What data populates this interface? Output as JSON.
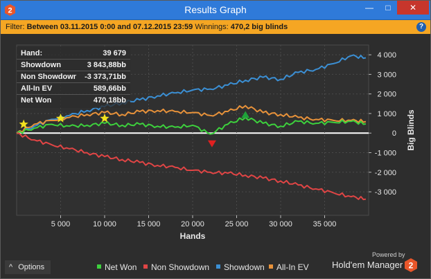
{
  "window": {
    "title": "Results Graph",
    "logo_text": "2",
    "minimize": "—",
    "maximize": "□",
    "close": "✕"
  },
  "filter": {
    "prefix": "Filter:",
    "range": "Between 03.11.2015 0:00 and 07.12.2015 23:59",
    "winnings_label": "Winnings:",
    "winnings_value": "470,2 big blinds",
    "help": "?"
  },
  "stats": [
    {
      "label": "Hand:",
      "value": "39 679"
    },
    {
      "label": "Showdown",
      "value": "3 843,88bb"
    },
    {
      "label": "Non Showdown",
      "value": "-3 373,71bb"
    },
    {
      "label": "All-In EV",
      "value": "589,66bb"
    },
    {
      "label": "Net Won",
      "value": "470,18bb"
    }
  ],
  "chart_data": {
    "type": "line",
    "xlabel": "Hands",
    "ylabel": "Big Blinds",
    "xlim": [
      0,
      40000
    ],
    "ylim": [
      -4200,
      4500
    ],
    "x_ticks": [
      5000,
      10000,
      15000,
      20000,
      25000,
      30000,
      35000
    ],
    "x_tick_labels": [
      "5 000",
      "10 000",
      "15 000",
      "20 000",
      "25 000",
      "30 000",
      "35 000"
    ],
    "y_ticks": [
      4000,
      3000,
      2000,
      1000,
      0,
      -1000,
      -2000,
      -3000
    ],
    "y_tick_labels": [
      "4 000",
      "3 000",
      "2 000",
      "1 000",
      "0",
      "-1 000",
      "-2 000",
      "-3 000"
    ],
    "grid": true,
    "background": "#303030",
    "series": [
      {
        "name": "Showdown",
        "color": "#3b8fd4",
        "x": [
          0,
          2000,
          4000,
          6000,
          8000,
          10000,
          12000,
          14000,
          16000,
          18000,
          20000,
          22000,
          24000,
          26000,
          28000,
          30000,
          32000,
          34000,
          36000,
          38000,
          39679
        ],
        "y": [
          0,
          350,
          700,
          900,
          1150,
          1350,
          1550,
          1700,
          1900,
          2050,
          2200,
          2250,
          2450,
          2700,
          2850,
          2750,
          3100,
          3250,
          3550,
          3950,
          3844
        ]
      },
      {
        "name": "All-In EV",
        "color": "#e8923a",
        "x": [
          0,
          2000,
          4000,
          6000,
          8000,
          10000,
          12000,
          14000,
          16000,
          18000,
          20000,
          22000,
          24000,
          26000,
          28000,
          30000,
          32000,
          34000,
          36000,
          38000,
          39679
        ],
        "y": [
          0,
          450,
          650,
          800,
          950,
          1050,
          950,
          1100,
          1150,
          1100,
          1050,
          900,
          1100,
          1400,
          1050,
          950,
          800,
          700,
          650,
          650,
          590
        ]
      },
      {
        "name": "Net Won",
        "color": "#3dd13d",
        "x": [
          0,
          2000,
          4000,
          6000,
          8000,
          10000,
          12000,
          14000,
          16000,
          18000,
          20000,
          22000,
          24000,
          26000,
          28000,
          30000,
          32000,
          34000,
          36000,
          38000,
          39679
        ],
        "y": [
          0,
          250,
          450,
          350,
          400,
          500,
          400,
          450,
          350,
          300,
          400,
          -50,
          450,
          800,
          500,
          350,
          600,
          500,
          550,
          600,
          470
        ]
      },
      {
        "name": "Non Showdown",
        "color": "#e04545",
        "x": [
          0,
          2000,
          4000,
          6000,
          8000,
          10000,
          12000,
          14000,
          16000,
          18000,
          20000,
          22000,
          24000,
          26000,
          28000,
          30000,
          32000,
          34000,
          36000,
          38000,
          39679
        ],
        "y": [
          0,
          -350,
          -600,
          -800,
          -1000,
          -1200,
          -1350,
          -1500,
          -1650,
          -1750,
          -1900,
          -2000,
          -2050,
          -2150,
          -2300,
          -2450,
          -2650,
          -2850,
          -3050,
          -3250,
          -3374
        ]
      }
    ],
    "markers": [
      {
        "kind": "star",
        "color": "#f2e21e",
        "x": 800,
        "y": 450
      },
      {
        "kind": "star",
        "color": "#f2e21e",
        "x": 5000,
        "y": 750
      },
      {
        "kind": "star",
        "color": "#f2e21e",
        "x": 10000,
        "y": 750
      },
      {
        "kind": "triangle-down",
        "color": "#e02020",
        "x": 22200,
        "y": -550
      },
      {
        "kind": "triangle-up",
        "color": "#1fa23a",
        "x": 26000,
        "y": 950
      }
    ]
  },
  "legend": [
    {
      "label": "Net Won",
      "color": "#3dd13d"
    },
    {
      "label": "Non Showdown",
      "color": "#e04545"
    },
    {
      "label": "Showdown",
      "color": "#3b8fd4"
    },
    {
      "label": "All-In EV",
      "color": "#e8923a"
    }
  ],
  "footer": {
    "options": "Options",
    "options_icon": "^",
    "powered": "Powered by",
    "brand": "Hold'em Manager",
    "brand_logo": "2"
  }
}
